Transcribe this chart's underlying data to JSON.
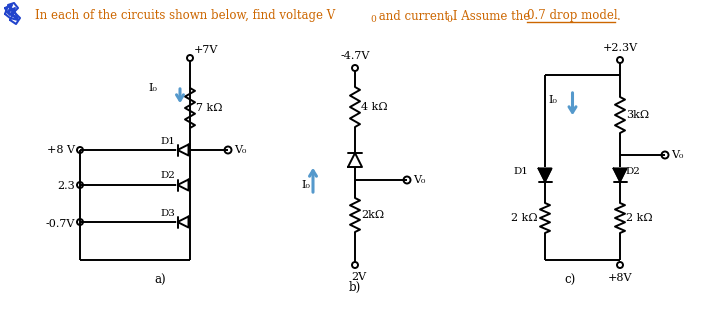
{
  "bg_color": "#ffffff",
  "title": "In each of the circuits shown below, find voltage V₀ and current I₀.  Assume the 0.7 drop model.",
  "circuit_a": {
    "label": "a)",
    "v_top": "+7V",
    "v_sources": [
      "+8 V",
      "2.3",
      "-0.7V"
    ],
    "diodes": [
      "D1",
      "D2",
      "D3"
    ],
    "resistor": "7 kΩ",
    "io_label": "I₀",
    "vo_label": "V₀"
  },
  "circuit_b": {
    "label": "b)",
    "v_top": "-4.7V",
    "v_bot": "2V",
    "r_top": "4 kΩ",
    "r_bot": "2kΩ",
    "io_label": "I₀",
    "vo_label": "V₀"
  },
  "circuit_c": {
    "label": "c)",
    "v_top": "+2.3V",
    "v_bot": "+8V",
    "r_top": "3kΩ",
    "r_bot_left": "2 kΩ",
    "r_bot_right": "2 kΩ",
    "diodes": [
      "D1",
      "D2"
    ],
    "io_label": "I₀",
    "vo_label": "V₀"
  },
  "arrow_color": "#5599cc",
  "text_color": "#000000",
  "orange_color": "#cc6600"
}
